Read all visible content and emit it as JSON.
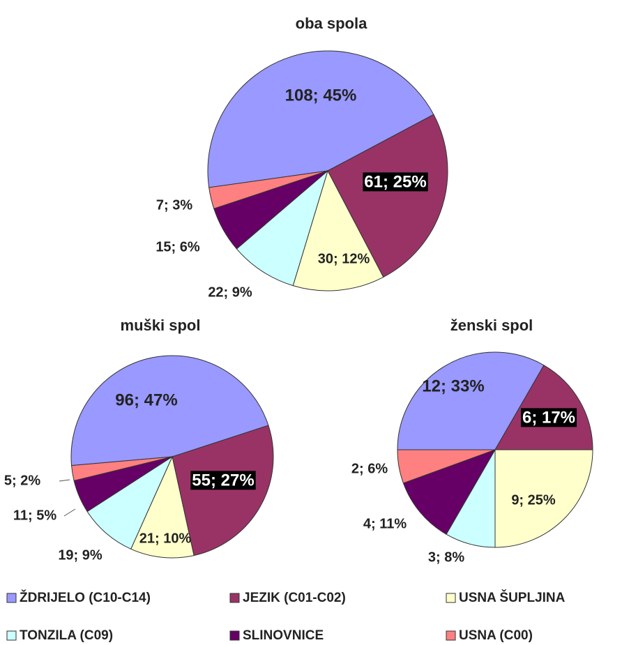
{
  "chart_data": [
    {
      "type": "pie",
      "title": "oba spola",
      "values": [
        108,
        61,
        30,
        22,
        15,
        7
      ],
      "value_labels": [
        "108; 45%",
        "61; 25%",
        "30; 12%",
        "22; 9%",
        "15; 6%",
        "7; 3%"
      ]
    },
    {
      "type": "pie",
      "title": "muški spol",
      "values": [
        96,
        55,
        21,
        19,
        11,
        5
      ],
      "value_labels": [
        "96; 47%",
        "55; 27%",
        "21; 10%",
        "19; 9%",
        "11; 5%",
        "5; 2%"
      ]
    },
    {
      "type": "pie",
      "title": "ženski spol",
      "values": [
        12,
        6,
        9,
        3,
        4,
        2
      ],
      "value_labels": [
        "12; 33%",
        "6; 17%",
        "9; 25%",
        "3; 8%",
        "4; 11%",
        "2; 6%"
      ]
    }
  ],
  "legend": {
    "labels": [
      "ŽDRIJELO (C10-C14)",
      "JEZIK (C01-C02)",
      "USNA ŠUPLJINA",
      "TONZILA (C09)",
      "SLINOVNICE",
      "USNA (C00)"
    ],
    "colors": [
      "#9999ff",
      "#993366",
      "#ffffcc",
      "#ccffff",
      "#660066",
      "#ff8080"
    ]
  }
}
